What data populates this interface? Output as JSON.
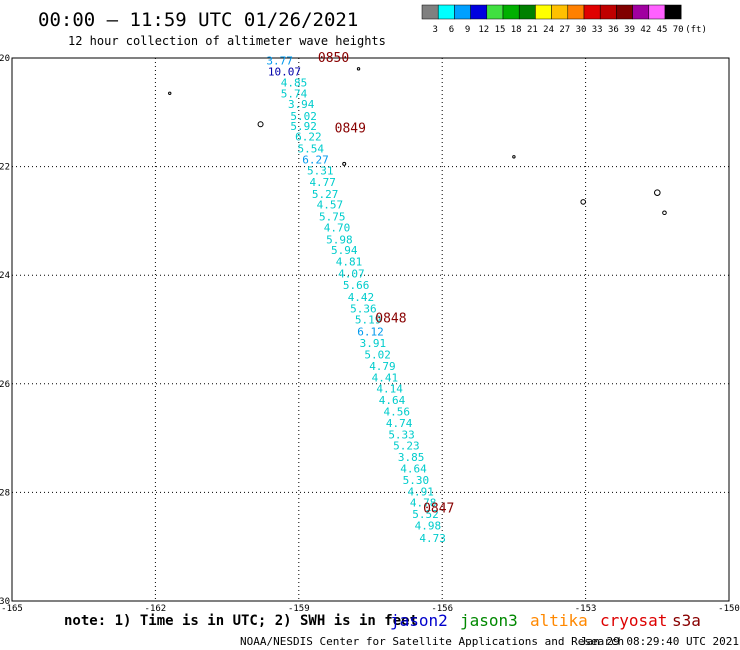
{
  "header": {
    "title": "00:00 – 11:59 UTC 01/26/2021",
    "subtitle": "12 hour collection of altimeter wave heights"
  },
  "colorbar": {
    "colors": [
      "#808080",
      "#00ffff",
      "#00a0ff",
      "#0000e0",
      "#40e040",
      "#00b000",
      "#008000",
      "#ffff00",
      "#ffc000",
      "#ff8000",
      "#e00000",
      "#c00000",
      "#800000",
      "#a000a0",
      "#ff60ff",
      "#000000"
    ],
    "labels": [
      "3",
      "6",
      "9",
      "12",
      "15",
      "18",
      "21",
      "24",
      "27",
      "30",
      "33",
      "36",
      "39",
      "42",
      "45",
      "70"
    ],
    "unit": "(ft)"
  },
  "note": "note: 1) Time is in UTC; 2) SWH is in feet",
  "satellites": [
    {
      "name": "jason2",
      "color": "#0000cc"
    },
    {
      "name": "jason3",
      "color": "#008800"
    },
    {
      "name": "altika",
      "color": "#ff8800"
    },
    {
      "name": "cryosat",
      "color": "#dd0000"
    },
    {
      "name": "s3a",
      "color": "#880000"
    }
  ],
  "footer": {
    "credit": "NOAA/NESDIS Center for Satellite Applications and Research",
    "timestamp": "Jan 29 08:29:40 UTC 2021"
  },
  "chart_data": {
    "type": "scatter",
    "xlim": [
      -165,
      -150
    ],
    "ylim": [
      -30,
      -20
    ],
    "x_ticks": [
      "-165",
      "-162",
      "-159",
      "-156",
      "-153",
      "-150"
    ],
    "y_ticks": [
      "-20",
      "-22",
      "-24",
      "-26",
      "-28",
      "-30"
    ],
    "grid": true,
    "colors": {
      "cyan": "#00cccc",
      "blue": "#0099ee",
      "navy": "#0000aa",
      "time": "#880000"
    },
    "points": [
      {
        "lon": -159.4,
        "lat": -20.05,
        "label": "3.77",
        "color": "blue"
      },
      {
        "lon": -159.3,
        "lat": -20.25,
        "label": "10.07",
        "color": "navy"
      },
      {
        "lon": -159.1,
        "lat": -20.45,
        "label": "4.85",
        "color": "cyan"
      },
      {
        "lon": -159.1,
        "lat": -20.65,
        "label": "5.74",
        "color": "cyan"
      },
      {
        "lon": -158.95,
        "lat": -20.85,
        "label": "3.94",
        "color": "cyan"
      },
      {
        "lon": -158.9,
        "lat": -21.07,
        "label": "5.02",
        "color": "cyan"
      },
      {
        "lon": -158.9,
        "lat": -21.25,
        "label": "5.92",
        "color": "cyan"
      },
      {
        "lon": -158.8,
        "lat": -21.45,
        "label": "6.22",
        "color": "cyan"
      },
      {
        "lon": -158.75,
        "lat": -21.67,
        "label": "5.54",
        "color": "cyan"
      },
      {
        "lon": -158.65,
        "lat": -21.87,
        "label": "6.27",
        "color": "blue"
      },
      {
        "lon": -158.55,
        "lat": -22.07,
        "label": "5.31",
        "color": "cyan"
      },
      {
        "lon": -158.5,
        "lat": -22.28,
        "label": "4.77",
        "color": "cyan"
      },
      {
        "lon": -158.45,
        "lat": -22.5,
        "label": "5.27",
        "color": "cyan"
      },
      {
        "lon": -158.35,
        "lat": -22.7,
        "label": "4.57",
        "color": "cyan"
      },
      {
        "lon": -158.3,
        "lat": -22.92,
        "label": "5.75",
        "color": "cyan"
      },
      {
        "lon": -158.2,
        "lat": -23.12,
        "label": "4.70",
        "color": "cyan"
      },
      {
        "lon": -158.15,
        "lat": -23.34,
        "label": "5.98",
        "color": "cyan"
      },
      {
        "lon": -158.05,
        "lat": -23.54,
        "label": "5.94",
        "color": "cyan"
      },
      {
        "lon": -157.95,
        "lat": -23.75,
        "label": "4.81",
        "color": "cyan"
      },
      {
        "lon": -157.9,
        "lat": -23.97,
        "label": "4.07",
        "color": "cyan"
      },
      {
        "lon": -157.8,
        "lat": -24.18,
        "label": "5.66",
        "color": "cyan"
      },
      {
        "lon": -157.7,
        "lat": -24.4,
        "label": "4.42",
        "color": "cyan"
      },
      {
        "lon": -157.65,
        "lat": -24.61,
        "label": "5.36",
        "color": "cyan"
      },
      {
        "lon": -157.55,
        "lat": -24.82,
        "label": "5.19",
        "color": "cyan"
      },
      {
        "lon": -157.5,
        "lat": -25.04,
        "label": "6.12",
        "color": "blue"
      },
      {
        "lon": -157.45,
        "lat": -25.25,
        "label": "3.91",
        "color": "cyan"
      },
      {
        "lon": -157.35,
        "lat": -25.46,
        "label": "5.02",
        "color": "cyan"
      },
      {
        "lon": -157.25,
        "lat": -25.67,
        "label": "4.79",
        "color": "cyan"
      },
      {
        "lon": -157.2,
        "lat": -25.88,
        "label": "4.41",
        "color": "cyan"
      },
      {
        "lon": -157.1,
        "lat": -26.09,
        "label": "4.14",
        "color": "cyan"
      },
      {
        "lon": -157.05,
        "lat": -26.3,
        "label": "4.64",
        "color": "cyan"
      },
      {
        "lon": -156.95,
        "lat": -26.51,
        "label": "4.56",
        "color": "cyan"
      },
      {
        "lon": -156.9,
        "lat": -26.72,
        "label": "4.74",
        "color": "cyan"
      },
      {
        "lon": -156.85,
        "lat": -26.93,
        "label": "5.33",
        "color": "cyan"
      },
      {
        "lon": -156.75,
        "lat": -27.14,
        "label": "5.23",
        "color": "cyan"
      },
      {
        "lon": -156.65,
        "lat": -27.35,
        "label": "3.85",
        "color": "cyan"
      },
      {
        "lon": -156.6,
        "lat": -27.56,
        "label": "4.64",
        "color": "cyan"
      },
      {
        "lon": -156.55,
        "lat": -27.77,
        "label": "5.30",
        "color": "cyan"
      },
      {
        "lon": -156.45,
        "lat": -27.98,
        "label": "4.91",
        "color": "cyan"
      },
      {
        "lon": -156.4,
        "lat": -28.19,
        "label": "4.78",
        "color": "cyan"
      },
      {
        "lon": -156.35,
        "lat": -28.4,
        "label": "5.52",
        "color": "cyan"
      },
      {
        "lon": -156.3,
        "lat": -28.61,
        "label": "4.98",
        "color": "cyan"
      },
      {
        "lon": -156.2,
        "lat": -28.84,
        "label": "4.73",
        "color": "cyan"
      }
    ],
    "time_labels": [
      {
        "lon": -158.6,
        "lat": -20.0,
        "label": "0850"
      },
      {
        "lon": -158.25,
        "lat": -21.3,
        "label": "0849"
      },
      {
        "lon": -157.4,
        "lat": -24.8,
        "label": "0848"
      },
      {
        "lon": -156.4,
        "lat": -28.3,
        "label": "0847"
      }
    ],
    "islands": [
      {
        "lon": -157.75,
        "lat": -20.2,
        "r": 1.2
      },
      {
        "lon": -161.7,
        "lat": -20.65,
        "r": 1.2
      },
      {
        "lon": -159.8,
        "lat": -21.22,
        "r": 2.5
      },
      {
        "lon": -158.05,
        "lat": -21.95,
        "r": 1.5
      },
      {
        "lon": -154.5,
        "lat": -21.82,
        "r": 1.2
      },
      {
        "lon": -153.05,
        "lat": -22.65,
        "r": 2.3
      },
      {
        "lon": -151.5,
        "lat": -22.48,
        "r": 2.8
      },
      {
        "lon": -151.35,
        "lat": -22.85,
        "r": 1.8
      }
    ]
  }
}
